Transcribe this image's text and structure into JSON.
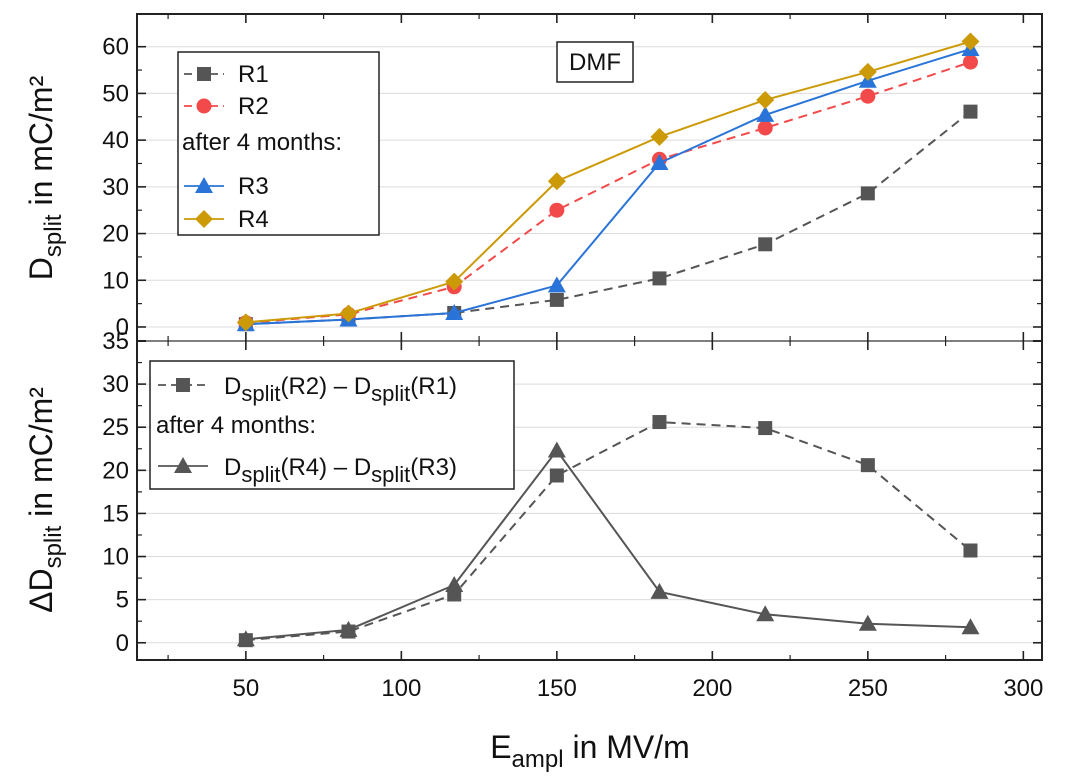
{
  "chart_data": [
    {
      "type": "line",
      "panel": "top",
      "annotation": "DMF",
      "ylabel": "D",
      "ylabel_sub": "split",
      "ylabel_unit": " in mC/m²",
      "xlabel": "E",
      "xlabel_sub": "ampl",
      "xlabel_unit": " in MV/m",
      "xlim": [
        15,
        306
      ],
      "ylim": [
        -3,
        67
      ],
      "xticks": [
        50,
        100,
        150,
        200,
        250,
        300
      ],
      "yticks": [
        0,
        10,
        20,
        30,
        40,
        50,
        60
      ],
      "x": [
        50,
        83,
        117,
        150,
        183,
        217,
        250,
        283
      ],
      "legend_note": "after 4 months:",
      "series": [
        {
          "name": "R1",
          "color": "#555555",
          "marker": "square",
          "dash": true,
          "values": [
            0.6,
            1.6,
            3.0,
            5.8,
            10.4,
            17.7,
            28.6,
            46.1
          ]
        },
        {
          "name": "R2",
          "color": "#f24a4a",
          "marker": "circle",
          "dash": true,
          "values": [
            0.9,
            2.7,
            8.6,
            25.0,
            35.9,
            42.6,
            49.4,
            56.7
          ]
        },
        {
          "name": "R3",
          "color": "#2a74d9",
          "marker": "triangle",
          "dash": false,
          "values": [
            0.6,
            1.6,
            3.0,
            8.9,
            35.1,
            45.4,
            52.7,
            59.5
          ]
        },
        {
          "name": "R4",
          "color": "#cc9a06",
          "marker": "diamond",
          "dash": false,
          "values": [
            1.0,
            2.9,
            9.7,
            31.2,
            40.7,
            48.6,
            54.6,
            61.1
          ]
        }
      ]
    },
    {
      "type": "line",
      "panel": "bottom",
      "ylabel": "ΔD",
      "ylabel_sub": "split",
      "ylabel_unit": " in mC/m²",
      "xlim": [
        15,
        306
      ],
      "ylim": [
        -2,
        35
      ],
      "xticks": [
        50,
        100,
        150,
        200,
        250,
        300
      ],
      "yticks": [
        0,
        5,
        10,
        15,
        20,
        25,
        30,
        35
      ],
      "x": [
        50,
        83,
        117,
        150,
        183,
        217,
        250,
        283
      ],
      "legend_note": "after 4 months:",
      "series": [
        {
          "name": "D",
          "sub1": "split",
          "mid": "(R2) – D",
          "sub2": "split",
          "end": "(R1)",
          "color": "#555555",
          "marker": "square",
          "dash": true,
          "values": [
            0.3,
            1.3,
            5.6,
            19.4,
            25.6,
            24.9,
            20.6,
            10.7
          ]
        },
        {
          "name": "D",
          "sub1": "split",
          "mid": "(R4) – D",
          "sub2": "split",
          "end": "(R3)",
          "color": "#555555",
          "marker": "triangle",
          "dash": false,
          "values": [
            0.4,
            1.5,
            6.7,
            22.3,
            5.9,
            3.3,
            2.2,
            1.8
          ]
        }
      ]
    }
  ]
}
